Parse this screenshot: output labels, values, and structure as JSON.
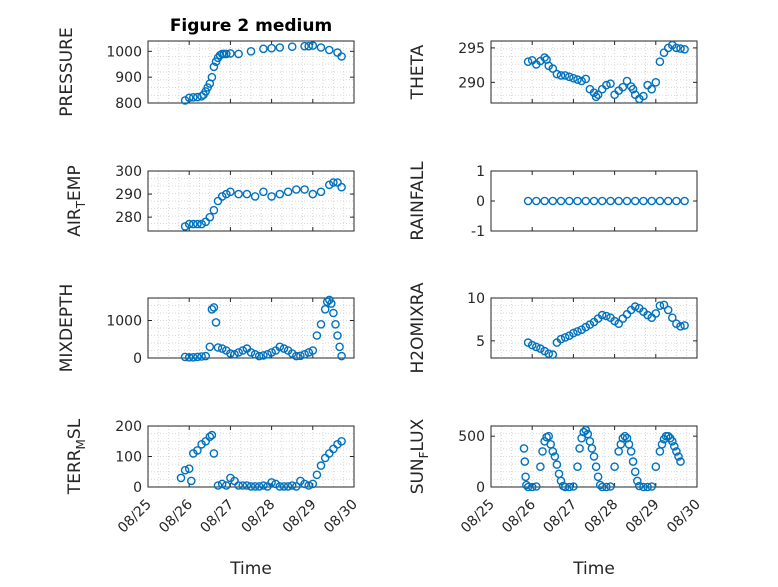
{
  "figure": {
    "title": "Figure 2 medium",
    "xlabel": "Time"
  },
  "colors": {
    "marker": "#0072BD",
    "axis": "#262626",
    "grid": "#d9d9d9",
    "background": "#ffffff"
  },
  "chart_data": [
    {
      "type": "scatter",
      "name": "pressure-panel",
      "ylabel": "PRESSURE",
      "ylim": [
        800,
        1040
      ],
      "yticks": [
        800,
        900,
        1000
      ],
      "grid": true,
      "x": [
        0.9,
        1.0,
        1.1,
        1.2,
        1.3,
        1.35,
        1.4,
        1.45,
        1.5,
        1.55,
        1.6,
        1.65,
        1.7,
        1.75,
        1.8,
        1.85,
        1.9,
        2.0,
        2.2,
        2.5,
        2.8,
        3.0,
        3.2,
        3.5,
        3.8,
        3.9,
        4.0,
        4.2,
        4.4,
        4.6,
        4.7
      ],
      "y": [
        810,
        820,
        822,
        823,
        826,
        832,
        845,
        860,
        875,
        900,
        940,
        960,
        975,
        985,
        990,
        990,
        990,
        992,
        990,
        1000,
        1010,
        1012,
        1015,
        1018,
        1020,
        1020,
        1022,
        1015,
        1005,
        995,
        980
      ]
    },
    {
      "type": "scatter",
      "name": "theta-panel",
      "ylabel": "THETA",
      "ylim": [
        287,
        296
      ],
      "yticks": [
        290,
        295
      ],
      "grid": true,
      "x": [
        0.9,
        1.0,
        1.1,
        1.2,
        1.3,
        1.35,
        1.4,
        1.5,
        1.6,
        1.7,
        1.8,
        1.9,
        2.0,
        2.1,
        2.2,
        2.3,
        2.4,
        2.5,
        2.55,
        2.6,
        2.7,
        2.8,
        2.9,
        3.0,
        3.1,
        3.2,
        3.3,
        3.4,
        3.45,
        3.5,
        3.6,
        3.7,
        3.8,
        3.9,
        4.0,
        4.1,
        4.2,
        4.3,
        4.4,
        4.5,
        4.6,
        4.7
      ],
      "y": [
        293.0,
        293.2,
        292.6,
        293.1,
        293.6,
        293.3,
        292.4,
        292.0,
        291.2,
        291.0,
        291.0,
        290.8,
        290.6,
        290.4,
        290.2,
        290.5,
        289.0,
        288.5,
        287.9,
        288.2,
        289.0,
        289.6,
        289.8,
        288.2,
        288.8,
        289.3,
        290.2,
        289.4,
        289.0,
        288.2,
        287.6,
        288.0,
        289.6,
        289.0,
        290.0,
        293.0,
        294.3,
        295.0,
        295.4,
        295.0,
        294.9,
        294.8
      ]
    },
    {
      "type": "scatter",
      "name": "air-temp-panel",
      "ylabel": "AIR",
      "ylabel_sub": "T",
      "ylabel_rest": "EMP",
      "ylim": [
        274,
        300
      ],
      "yticks": [
        280,
        290,
        300
      ],
      "grid": true,
      "x": [
        0.9,
        1.0,
        1.1,
        1.2,
        1.3,
        1.4,
        1.5,
        1.6,
        1.7,
        1.8,
        1.9,
        2.0,
        2.2,
        2.4,
        2.6,
        2.8,
        3.0,
        3.2,
        3.4,
        3.6,
        3.8,
        4.0,
        4.2,
        4.4,
        4.5,
        4.6,
        4.7
      ],
      "y": [
        276,
        277,
        277,
        277,
        277,
        278,
        280,
        283,
        287,
        289,
        290,
        291,
        290,
        290,
        289,
        291,
        289,
        290,
        291,
        292,
        292,
        290,
        291,
        294,
        295,
        295,
        293
      ]
    },
    {
      "type": "scatter",
      "name": "rainfall-panel",
      "ylabel": "RAINFALL",
      "ylim": [
        -1,
        1
      ],
      "yticks": [
        -1,
        0,
        1
      ],
      "grid": false,
      "x": [
        0.9,
        1.1,
        1.3,
        1.5,
        1.7,
        1.9,
        2.1,
        2.3,
        2.5,
        2.7,
        2.9,
        3.1,
        3.3,
        3.5,
        3.7,
        3.9,
        4.1,
        4.3,
        4.5,
        4.7
      ],
      "y": [
        0,
        0,
        0,
        0,
        0,
        0,
        0,
        0,
        0,
        0,
        0,
        0,
        0,
        0,
        0,
        0,
        0,
        0,
        0,
        0
      ]
    },
    {
      "type": "scatter",
      "name": "mixdepth-panel",
      "ylabel": "MIXDEPTH",
      "ylim": [
        0,
        1600
      ],
      "yticks": [
        0,
        1000
      ],
      "grid": true,
      "x": [
        0.9,
        1.0,
        1.1,
        1.2,
        1.3,
        1.4,
        1.5,
        1.55,
        1.6,
        1.65,
        1.7,
        1.8,
        1.9,
        2.0,
        2.1,
        2.2,
        2.3,
        2.4,
        2.5,
        2.6,
        2.7,
        2.8,
        2.9,
        3.0,
        3.1,
        3.2,
        3.3,
        3.4,
        3.5,
        3.6,
        3.7,
        3.8,
        3.9,
        4.0,
        4.1,
        4.2,
        4.3,
        4.35,
        4.4,
        4.45,
        4.5,
        4.55,
        4.6,
        4.65,
        4.7
      ],
      "y": [
        30,
        20,
        20,
        30,
        40,
        50,
        300,
        1300,
        1350,
        950,
        280,
        250,
        200,
        120,
        100,
        150,
        200,
        250,
        150,
        100,
        50,
        70,
        100,
        150,
        200,
        300,
        250,
        200,
        120,
        50,
        60,
        100,
        150,
        200,
        600,
        900,
        1300,
        1500,
        1550,
        1450,
        1200,
        900,
        600,
        300,
        50
      ]
    },
    {
      "type": "scatter",
      "name": "h2o-mixratio-panel",
      "ylabel": "H2OMIXRA",
      "ylim": [
        3,
        10
      ],
      "yticks": [
        5,
        10
      ],
      "grid": true,
      "x": [
        0.9,
        1.0,
        1.1,
        1.2,
        1.3,
        1.4,
        1.5,
        1.6,
        1.7,
        1.8,
        1.9,
        2.0,
        2.1,
        2.2,
        2.3,
        2.4,
        2.5,
        2.6,
        2.7,
        2.8,
        2.9,
        3.0,
        3.1,
        3.2,
        3.3,
        3.4,
        3.5,
        3.6,
        3.7,
        3.8,
        3.9,
        4.0,
        4.1,
        4.2,
        4.3,
        4.4,
        4.5,
        4.6,
        4.7
      ],
      "y": [
        4.8,
        4.5,
        4.3,
        4.1,
        3.8,
        3.5,
        3.4,
        4.8,
        5.2,
        5.4,
        5.6,
        5.9,
        6.1,
        6.3,
        6.6,
        6.9,
        7.2,
        7.6,
        8.0,
        7.9,
        7.7,
        7.3,
        7.0,
        7.6,
        8.1,
        8.6,
        9.0,
        8.8,
        8.4,
        8.0,
        7.7,
        8.2,
        9.1,
        9.2,
        8.6,
        7.7,
        7.0,
        6.7,
        6.8
      ]
    },
    {
      "type": "scatter",
      "name": "terrain-msl-panel",
      "ylabel": "TERR",
      "ylabel_sub": "M",
      "ylabel_rest": "SL",
      "ylim": [
        0,
        200
      ],
      "yticks": [
        0,
        100,
        200
      ],
      "xticks": [
        "08/25",
        "08/26",
        "08/27",
        "08/28",
        "08/29",
        "08/30"
      ],
      "grid": true,
      "x": [
        0.8,
        0.9,
        1.0,
        1.05,
        1.1,
        1.2,
        1.3,
        1.4,
        1.5,
        1.55,
        1.6,
        1.7,
        1.8,
        1.9,
        2.0,
        2.1,
        2.2,
        2.3,
        2.4,
        2.5,
        2.6,
        2.7,
        2.8,
        2.9,
        3.0,
        3.1,
        3.2,
        3.3,
        3.4,
        3.5,
        3.6,
        3.7,
        3.8,
        3.9,
        4.0,
        4.1,
        4.2,
        4.3,
        4.4,
        4.5,
        4.6,
        4.7
      ],
      "y": [
        30,
        55,
        60,
        20,
        110,
        120,
        140,
        150,
        165,
        170,
        110,
        5,
        10,
        5,
        30,
        20,
        5,
        5,
        5,
        2,
        2,
        2,
        5,
        2,
        15,
        10,
        2,
        2,
        2,
        5,
        2,
        20,
        10,
        5,
        10,
        40,
        70,
        95,
        110,
        125,
        140,
        150
      ]
    },
    {
      "type": "scatter",
      "name": "sun-flux-panel",
      "ylabel": "SUN",
      "ylabel_sub": "F",
      "ylabel_rest": "LUX",
      "ylim": [
        0,
        600
      ],
      "yticks": [
        0,
        500
      ],
      "xticks": [
        "08/25",
        "08/26",
        "08/27",
        "08/28",
        "08/29",
        "08/30"
      ],
      "grid": true,
      "x": [
        0.8,
        0.82,
        0.84,
        0.86,
        0.9,
        1.0,
        1.1,
        1.2,
        1.25,
        1.3,
        1.35,
        1.4,
        1.45,
        1.5,
        1.55,
        1.6,
        1.65,
        1.7,
        1.75,
        1.8,
        1.9,
        2.0,
        2.1,
        2.15,
        2.2,
        2.25,
        2.3,
        2.35,
        2.4,
        2.45,
        2.5,
        2.55,
        2.6,
        2.65,
        2.7,
        2.8,
        2.9,
        3.0,
        3.1,
        3.15,
        3.2,
        3.25,
        3.3,
        3.35,
        3.4,
        3.45,
        3.5,
        3.55,
        3.6,
        3.7,
        3.8,
        3.9,
        4.0,
        4.1,
        4.15,
        4.2,
        4.25,
        4.3,
        4.35,
        4.4,
        4.45,
        4.5,
        4.55,
        4.6
      ],
      "y": [
        380,
        250,
        100,
        20,
        0,
        0,
        5,
        200,
        350,
        450,
        490,
        500,
        420,
        350,
        300,
        220,
        130,
        60,
        10,
        0,
        0,
        5,
        200,
        380,
        480,
        540,
        560,
        520,
        450,
        380,
        300,
        200,
        100,
        20,
        0,
        0,
        5,
        200,
        350,
        420,
        480,
        500,
        480,
        420,
        350,
        250,
        150,
        60,
        10,
        0,
        0,
        5,
        200,
        350,
        420,
        470,
        500,
        500,
        480,
        450,
        400,
        350,
        300,
        250
      ]
    }
  ]
}
